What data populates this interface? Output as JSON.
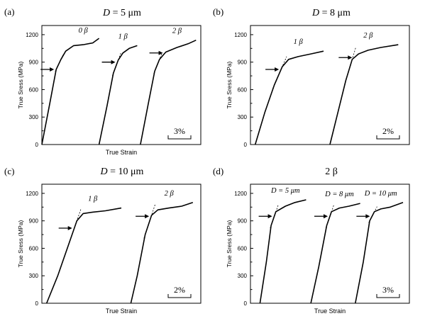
{
  "figure": {
    "panels": [
      {
        "panel_label": "(a)",
        "title_var": "D",
        "title_value": " = 5 μm",
        "ylabel": "True Sress (MPa)",
        "xlabel": "True Strain",
        "scale_bar_label": "3%"
      },
      {
        "panel_label": "(b)",
        "title_var": "D",
        "title_value": " = 8 μm",
        "ylabel": "True Sress (MPa)",
        "xlabel": "",
        "scale_bar_label": "2%"
      },
      {
        "panel_label": "(c)",
        "title_var": "D",
        "title_value": " = 10 μm",
        "ylabel": "True Sress (MPa)",
        "xlabel": "True Strain",
        "scale_bar_label": "2%"
      },
      {
        "panel_label": "(d)",
        "title_var": "",
        "title_value": "2 β",
        "ylabel": "True Sress (MPa)",
        "xlabel": "True Strain",
        "scale_bar_label": "3%"
      }
    ]
  },
  "chart_data": [
    {
      "type": "line",
      "panel": "(a)",
      "title": "D = 5 μm",
      "xlabel": "True Strain",
      "ylabel": "True Sress (MPa)",
      "ylim": [
        0,
        1300
      ],
      "yticks": [
        0,
        300,
        600,
        900,
        1200
      ],
      "xlim": [
        0,
        10
      ],
      "x_scale_bar": "3%",
      "x_units": "offset strain (%)",
      "series": [
        {
          "name": "0 β",
          "x": [
            0.0,
            0.5,
            0.9,
            1.2,
            1.5,
            2.0,
            2.6,
            3.2,
            3.6
          ],
          "y": [
            0,
            450,
            820,
            930,
            1020,
            1080,
            1090,
            1110,
            1160
          ],
          "arrow_at_y": 820
        },
        {
          "name": "1 β",
          "x": [
            3.6,
            4.1,
            4.5,
            4.8,
            5.1,
            5.5,
            6.0
          ],
          "y": [
            0,
            420,
            780,
            920,
            1000,
            1050,
            1080
          ],
          "arrow_at_y": 900
        },
        {
          "name": "2 β",
          "x": [
            6.2,
            6.7,
            7.1,
            7.4,
            7.8,
            8.5,
            9.2,
            9.7
          ],
          "y": [
            0,
            450,
            800,
            930,
            1010,
            1060,
            1100,
            1140
          ],
          "arrow_at_y": 1000
        }
      ]
    },
    {
      "type": "line",
      "panel": "(b)",
      "title": "D = 8 μm",
      "xlabel": "",
      "ylabel": "True Sress (MPa)",
      "ylim": [
        0,
        1300
      ],
      "yticks": [
        0,
        300,
        600,
        900,
        1200
      ],
      "xlim": [
        0,
        10
      ],
      "x_scale_bar": "2%",
      "x_units": "offset strain (%)",
      "series": [
        {
          "name": "1 β",
          "x": [
            0.3,
            0.9,
            1.5,
            2.0,
            2.4,
            3.0,
            3.8,
            4.6
          ],
          "y": [
            0,
            350,
            650,
            850,
            930,
            960,
            990,
            1020
          ],
          "arrow_at_y": 820
        },
        {
          "name": "2 β",
          "x": [
            5.0,
            5.5,
            6.0,
            6.4,
            6.8,
            7.4,
            8.2,
            9.3
          ],
          "y": [
            0,
            350,
            700,
            930,
            990,
            1030,
            1060,
            1090
          ],
          "arrow_at_y": 950
        }
      ]
    },
    {
      "type": "line",
      "panel": "(c)",
      "title": "D = 10 μm",
      "xlabel": "True Strain",
      "ylabel": "True Sress (MPa)",
      "ylim": [
        0,
        1300
      ],
      "yticks": [
        0,
        300,
        600,
        900,
        1200
      ],
      "xlim": [
        0,
        10
      ],
      "x_scale_bar": "2%",
      "x_units": "offset strain (%)",
      "series": [
        {
          "name": "1 β",
          "x": [
            0.3,
            1.0,
            1.7,
            2.2,
            2.6,
            3.2,
            4.0,
            5.0
          ],
          "y": [
            0,
            300,
            650,
            900,
            980,
            995,
            1010,
            1040
          ],
          "arrow_at_y": 820
        },
        {
          "name": "2 β",
          "x": [
            5.6,
            6.0,
            6.5,
            6.9,
            7.3,
            8.0,
            8.8,
            9.5
          ],
          "y": [
            0,
            300,
            750,
            960,
            1020,
            1040,
            1060,
            1100
          ],
          "arrow_at_y": 950
        }
      ]
    },
    {
      "type": "line",
      "panel": "(d)",
      "title": "2 β",
      "xlabel": "True Strain",
      "ylabel": "True Sress (MPa)",
      "ylim": [
        0,
        1300
      ],
      "yticks": [
        0,
        300,
        600,
        900,
        1200
      ],
      "xlim": [
        0,
        10
      ],
      "x_scale_bar": "3%",
      "x_units": "offset strain (%)",
      "series": [
        {
          "name": "D = 5 μm",
          "x": [
            0.6,
            1.0,
            1.3,
            1.6,
            2.2,
            2.8,
            3.5
          ],
          "y": [
            0,
            450,
            850,
            1000,
            1060,
            1100,
            1130
          ],
          "arrow_at_y": 950
        },
        {
          "name": "D = 8 μm",
          "x": [
            3.8,
            4.3,
            4.8,
            5.1,
            5.6,
            6.2,
            6.9
          ],
          "y": [
            0,
            400,
            850,
            1000,
            1040,
            1060,
            1090
          ],
          "arrow_at_y": 950
        },
        {
          "name": "D = 10 μm",
          "x": [
            6.6,
            7.1,
            7.5,
            7.8,
            8.2,
            8.8,
            9.6
          ],
          "y": [
            0,
            450,
            900,
            1000,
            1030,
            1050,
            1100
          ],
          "arrow_at_y": 950
        }
      ]
    }
  ]
}
